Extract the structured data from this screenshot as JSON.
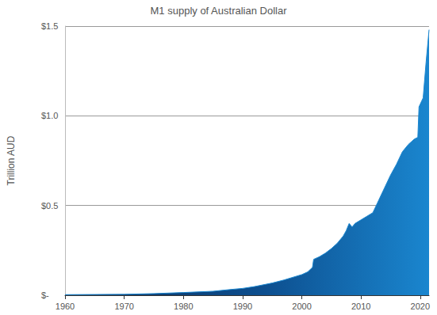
{
  "chart_data": {
    "type": "area",
    "title": "M1 supply of Australian Dollar",
    "y_label": "Trillion AUD",
    "x": [
      1960,
      1965,
      1970,
      1975,
      1980,
      1985,
      1988,
      1990,
      1992,
      1995,
      1997,
      1999,
      2000,
      2001,
      2001.8,
      2002,
      2003,
      2004,
      2005,
      2006,
      2007,
      2007.5,
      2008,
      2008.5,
      2009,
      2010,
      2011,
      2012,
      2013,
      2014,
      2015,
      2016,
      2017,
      2018,
      2019,
      2019.6,
      2019.8,
      2020.5,
      2021,
      2021.5
    ],
    "values": [
      0.003,
      0.004,
      0.005,
      0.009,
      0.015,
      0.022,
      0.032,
      0.038,
      0.048,
      0.068,
      0.085,
      0.105,
      0.115,
      0.13,
      0.155,
      0.2,
      0.215,
      0.235,
      0.26,
      0.29,
      0.33,
      0.36,
      0.4,
      0.38,
      0.4,
      0.42,
      0.44,
      0.46,
      0.53,
      0.6,
      0.67,
      0.73,
      0.8,
      0.84,
      0.87,
      0.88,
      1.05,
      1.1,
      1.3,
      1.48
    ],
    "color": "#1a86cf",
    "xlim": [
      1960,
      2021.5
    ],
    "xticks": [
      1960,
      1970,
      1980,
      1990,
      2000,
      2010,
      2020
    ],
    "ylim": [
      0,
      1.5
    ],
    "yticks": [
      {
        "value": 0,
        "label": "$-"
      },
      {
        "value": 0.5,
        "label": "$0.5"
      },
      {
        "value": 1,
        "label": "$1.0"
      },
      {
        "value": 1.5,
        "label": "$1.5"
      }
    ],
    "grid": true
  }
}
